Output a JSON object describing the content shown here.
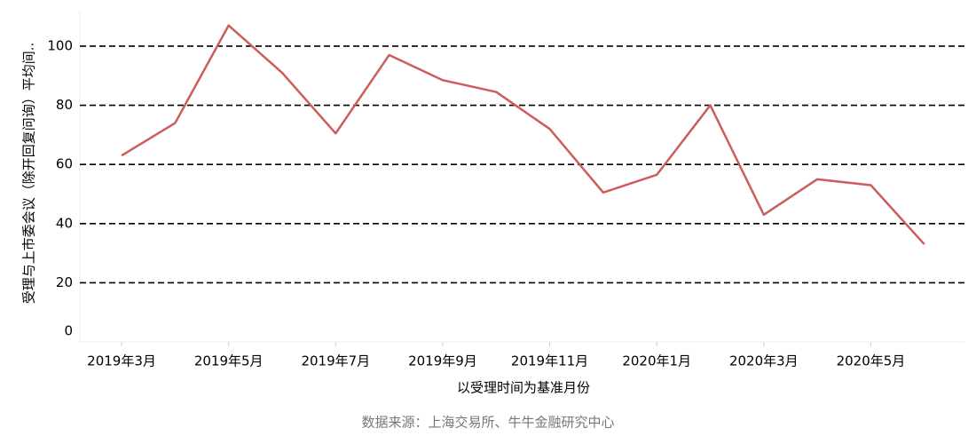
{
  "chart_data": {
    "type": "line",
    "y_label": "受理与上市委会议（除开回复问询）平均间..",
    "x_label": "以受理时间为基准月份",
    "source": "数据来源：上海交易所、牛牛金融研究中心",
    "categories": [
      "2019年3月",
      null,
      "2019年5月",
      null,
      "2019年7月",
      null,
      "2019年9月",
      null,
      "2019年11月",
      null,
      "2020年1月",
      null,
      "2020年3月",
      null,
      "2020年5月",
      null
    ],
    "values": [
      63,
      74,
      107,
      91,
      70.5,
      97,
      88.5,
      84.5,
      72,
      50.5,
      56.5,
      80,
      43,
      55,
      53,
      33
    ],
    "color": "#cd5c5c",
    "ylim": [
      0,
      112
    ],
    "yticks": [
      0,
      20,
      40,
      60,
      80,
      100
    ],
    "grid": true
  }
}
